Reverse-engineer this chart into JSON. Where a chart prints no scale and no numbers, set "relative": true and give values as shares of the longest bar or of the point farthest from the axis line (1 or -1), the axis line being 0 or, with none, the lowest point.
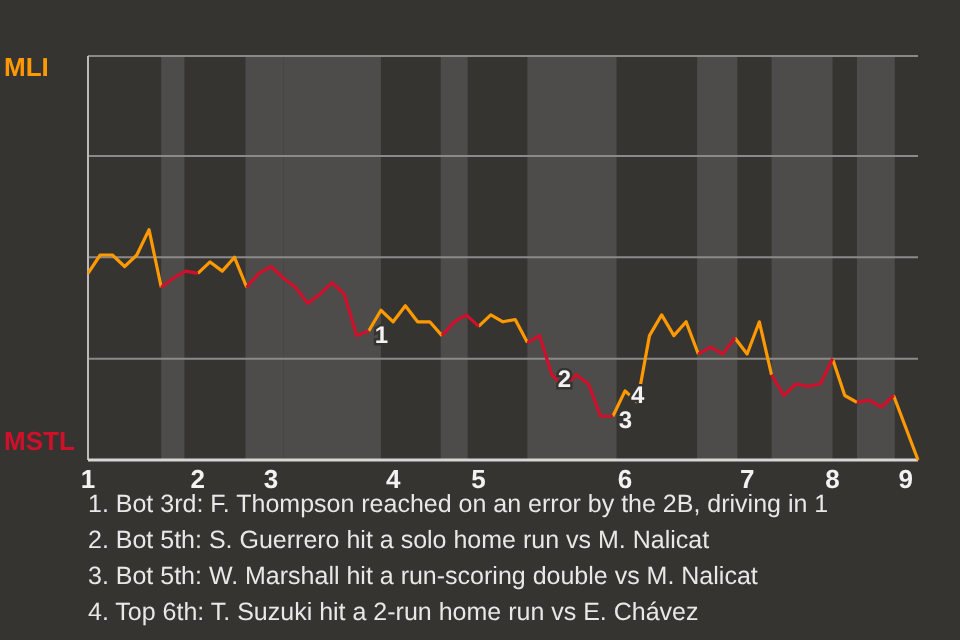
{
  "chart_data": {
    "type": "line",
    "relative": true,
    "categories": [
      "1",
      null,
      null,
      null,
      null,
      null,
      null,
      null,
      null,
      "2",
      null,
      null,
      null,
      null,
      null,
      "3",
      null,
      null,
      null,
      null,
      null,
      null,
      null,
      null,
      null,
      "4",
      null,
      null,
      null,
      null,
      null,
      null,
      "5",
      null,
      null,
      null,
      null,
      null,
      null,
      null,
      null,
      null,
      null,
      null,
      "6",
      null,
      null,
      null,
      null,
      null,
      null,
      null,
      null,
      null,
      "7",
      null,
      null,
      null,
      null,
      null,
      null,
      "8",
      null,
      null,
      null,
      null,
      null,
      "9",
      null
    ],
    "series": [
      {
        "color": "#ff9900",
        "values": [
          0.81,
          0.89,
          0.89,
          0.84,
          0.89,
          1,
          0.75,
          null,
          null,
          0.81,
          0.86,
          0.82,
          0.88,
          0.75,
          null,
          null,
          null,
          null,
          null,
          null,
          null,
          null,
          null,
          0.56,
          0.65,
          0.6,
          0.67,
          0.6,
          0.6,
          0.54,
          null,
          null,
          0.58,
          0.63,
          0.6,
          0.61,
          0.51,
          null,
          null,
          null,
          null,
          null,
          null,
          0.19,
          0.3,
          0.25,
          0.54,
          0.63,
          0.54,
          0.6,
          0.46,
          null,
          null,
          0.53,
          0.46,
          0.6,
          0.37,
          null,
          null,
          null,
          null,
          0.44,
          0.28,
          0.25,
          null,
          null,
          0.28,
          0.14,
          0
        ]
      },
      {
        "color": "#d0102a",
        "values": [
          null,
          null,
          null,
          null,
          null,
          null,
          0.75,
          0.79,
          0.82,
          0.81,
          null,
          null,
          null,
          0.75,
          0.81,
          0.84,
          0.79,
          0.75,
          0.68,
          0.72,
          0.77,
          0.72,
          0.54,
          0.56,
          null,
          null,
          null,
          null,
          null,
          0.54,
          0.6,
          0.63,
          0.58,
          null,
          null,
          null,
          0.51,
          0.54,
          0.37,
          0.32,
          0.37,
          0.33,
          0.19,
          0.19,
          null,
          null,
          null,
          null,
          null,
          null,
          0.46,
          0.49,
          0.46,
          0.53,
          null,
          null,
          0.37,
          0.28,
          0.33,
          0.32,
          0.33,
          0.44,
          null,
          0.25,
          0.26,
          0.23,
          0.28,
          null,
          null
        ]
      }
    ],
    "marker": "none",
    "line_style": "solid",
    "ref_lines": [
      {
        "axis": "y",
        "value": 0.44,
        "color": "#8c8a88"
      },
      {
        "axis": "y",
        "value": 0.88,
        "color": "#8c8a88"
      },
      {
        "axis": "y",
        "value": 1.32,
        "color": "#8c8a88"
      }
    ],
    "annotations": [
      "MLI",
      "MSTL",
      {
        "text": "1",
        "y": 0.56
      },
      {
        "text": "2",
        "y": 0.37
      },
      {
        "text": "3",
        "y": 0.19
      },
      {
        "text": "4",
        "y": 0.3
      },
      "1. Bot 3rd: F. Thompson reached on an error by the 2B, driving in 1",
      "2. Bot 5th: S. Guerrero hit a solo home run vs M. Nalicat",
      "3. Bot 5th: W. Marshall hit a run-scoring double vs M. Nalicat",
      "4. Top 6th: T. Suzuki hit a 2-run home run vs E. Chávez"
    ]
  }
}
